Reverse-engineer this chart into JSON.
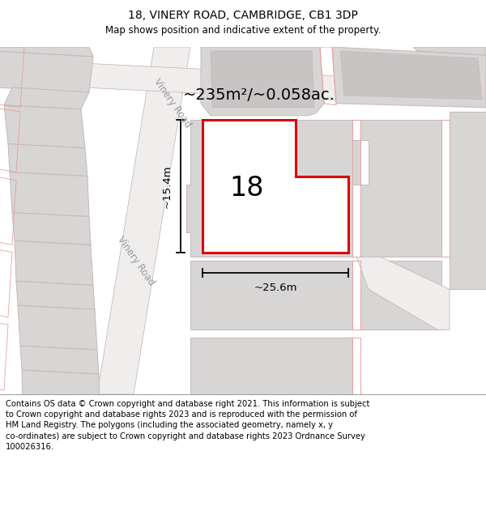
{
  "title": "18, VINERY ROAD, CAMBRIDGE, CB1 3DP",
  "subtitle": "Map shows position and indicative extent of the property.",
  "footer": "Contains OS data © Crown copyright and database right 2021. This information is subject\nto Crown copyright and database rights 2023 and is reproduced with the permission of\nHM Land Registry. The polygons (including the associated geometry, namely x, y\nco-ordinates) are subject to Crown copyright and database rights 2023 Ordnance Survey\n100026316.",
  "area_label": "~235m²/~0.058ac.",
  "width_label": "~25.6m",
  "height_label": "~15.4m",
  "road_label_diag": "Vinery Road",
  "road_label_horiz": "Vinery Road",
  "number_label": "18",
  "bg_color": "#f7f3f3",
  "building_gray": "#d8d5d5",
  "building_outline": "#c8b8b8",
  "road_outline": "#c0b0b0",
  "highlight_fill": "#ffffff",
  "highlight_stroke": "#dd0000",
  "pink_outline": "#e8a0a0",
  "title_fontsize": 10,
  "subtitle_fontsize": 8.5,
  "footer_fontsize": 7.2
}
